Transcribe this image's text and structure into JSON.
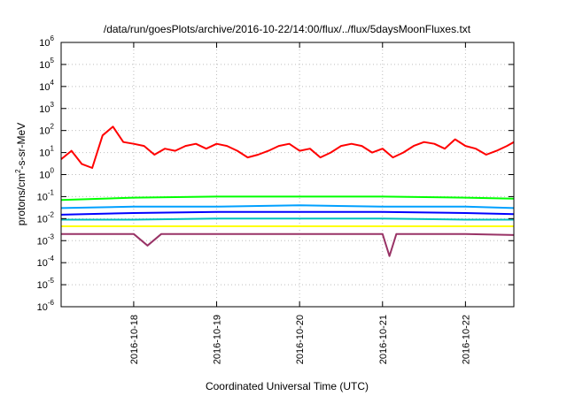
{
  "chart_data": {
    "type": "line",
    "title": "/data/run/goesPlots/archive/2016-10-22/14:00/flux/../flux/5daysMoonFluxes.txt",
    "xlabel": "Coordinated Universal Time (UTC)",
    "ylabel": {
      "prefix": "protons/cm",
      "superscript": "2",
      "suffix": "-s-sr-MeV"
    },
    "yscale": "log",
    "ylim": [
      1e-06,
      1000000.0
    ],
    "y_ticks": [
      {
        "base": "10",
        "exp": "-6",
        "value": 1e-06
      },
      {
        "base": "10",
        "exp": "-5",
        "value": 1e-05
      },
      {
        "base": "10",
        "exp": "-4",
        "value": 0.0001
      },
      {
        "base": "10",
        "exp": "-3",
        "value": 0.001
      },
      {
        "base": "10",
        "exp": "-2",
        "value": 0.01
      },
      {
        "base": "10",
        "exp": "-1",
        "value": 0.1
      },
      {
        "base": "10",
        "exp": "0",
        "value": 1
      },
      {
        "base": "10",
        "exp": "1",
        "value": 10
      },
      {
        "base": "10",
        "exp": "2",
        "value": 100
      },
      {
        "base": "10",
        "exp": "3",
        "value": 1000
      },
      {
        "base": "10",
        "exp": "4",
        "value": 10000
      },
      {
        "base": "10",
        "exp": "5",
        "value": 100000
      },
      {
        "base": "10",
        "exp": "6",
        "value": 1000000
      }
    ],
    "xlim": [
      "2016-10-17T03:00",
      "2016-10-22T14:00"
    ],
    "x_ticks": [
      "2016-10-18",
      "2016-10-19",
      "2016-10-20",
      "2016-10-21",
      "2016-10-22"
    ],
    "grid": true,
    "series": [
      {
        "color": "#ff0000",
        "x": [
          "2016-10-17T03:00",
          "2016-10-17T06:00",
          "2016-10-17T09:00",
          "2016-10-17T12:00",
          "2016-10-17T15:00",
          "2016-10-17T18:00",
          "2016-10-17T21:00",
          "2016-10-18T00:00",
          "2016-10-18T03:00",
          "2016-10-18T06:00",
          "2016-10-18T09:00",
          "2016-10-18T12:00",
          "2016-10-18T15:00",
          "2016-10-18T18:00",
          "2016-10-18T21:00",
          "2016-10-19T00:00",
          "2016-10-19T03:00",
          "2016-10-19T06:00",
          "2016-10-19T09:00",
          "2016-10-19T12:00",
          "2016-10-19T15:00",
          "2016-10-19T18:00",
          "2016-10-19T21:00",
          "2016-10-20T00:00",
          "2016-10-20T03:00",
          "2016-10-20T06:00",
          "2016-10-20T09:00",
          "2016-10-20T12:00",
          "2016-10-20T15:00",
          "2016-10-20T18:00",
          "2016-10-20T21:00",
          "2016-10-21T00:00",
          "2016-10-21T03:00",
          "2016-10-21T06:00",
          "2016-10-21T09:00",
          "2016-10-21T12:00",
          "2016-10-21T15:00",
          "2016-10-21T18:00",
          "2016-10-21T21:00",
          "2016-10-22T00:00",
          "2016-10-22T03:00",
          "2016-10-22T06:00",
          "2016-10-22T09:00",
          "2016-10-22T12:00",
          "2016-10-22T14:00"
        ],
        "values": [
          5,
          12,
          3,
          2,
          60,
          150,
          30,
          25,
          20,
          8,
          15,
          12,
          20,
          25,
          15,
          25,
          20,
          12,
          6,
          8,
          12,
          20,
          25,
          12,
          15,
          6,
          10,
          20,
          25,
          20,
          10,
          15,
          6,
          10,
          20,
          30,
          25,
          15,
          40,
          20,
          15,
          8,
          12,
          20,
          30
        ]
      },
      {
        "color": "#00ff00",
        "x": [
          "2016-10-17T03:00",
          "2016-10-18T00:00",
          "2016-10-19T00:00",
          "2016-10-20T00:00",
          "2016-10-21T00:00",
          "2016-10-22T00:00",
          "2016-10-22T14:00"
        ],
        "values": [
          0.07,
          0.09,
          0.1,
          0.1,
          0.1,
          0.09,
          0.08
        ]
      },
      {
        "color": "#00a0ff",
        "x": [
          "2016-10-17T03:00",
          "2016-10-18T00:00",
          "2016-10-19T00:00",
          "2016-10-20T00:00",
          "2016-10-21T00:00",
          "2016-10-22T00:00",
          "2016-10-22T14:00"
        ],
        "values": [
          0.03,
          0.035,
          0.035,
          0.04,
          0.035,
          0.035,
          0.03
        ]
      },
      {
        "color": "#0000ff",
        "x": [
          "2016-10-17T03:00",
          "2016-10-18T00:00",
          "2016-10-19T00:00",
          "2016-10-20T00:00",
          "2016-10-21T00:00",
          "2016-10-22T00:00",
          "2016-10-22T14:00"
        ],
        "values": [
          0.015,
          0.018,
          0.02,
          0.02,
          0.02,
          0.018,
          0.016
        ]
      },
      {
        "color": "#00c0c0",
        "x": [
          "2016-10-17T03:00",
          "2016-10-18T00:00",
          "2016-10-19T00:00",
          "2016-10-20T00:00",
          "2016-10-21T00:00",
          "2016-10-22T00:00",
          "2016-10-22T14:00"
        ],
        "values": [
          0.009,
          0.009,
          0.01,
          0.01,
          0.01,
          0.009,
          0.009
        ]
      },
      {
        "color": "#ffff00",
        "x": [
          "2016-10-17T03:00",
          "2016-10-18T00:00",
          "2016-10-19T00:00",
          "2016-10-20T00:00",
          "2016-10-21T00:00",
          "2016-10-22T00:00",
          "2016-10-22T14:00"
        ],
        "values": [
          0.0045,
          0.0045,
          0.0045,
          0.0045,
          0.0045,
          0.0045,
          0.0045
        ]
      },
      {
        "color": "#993366",
        "x": [
          "2016-10-17T03:00",
          "2016-10-18T00:00",
          "2016-10-18T04:00",
          "2016-10-18T08:00",
          "2016-10-19T00:00",
          "2016-10-20T00:00",
          "2016-10-21T00:00",
          "2016-10-21T02:00",
          "2016-10-21T04:00",
          "2016-10-22T00:00",
          "2016-10-22T14:00"
        ],
        "values": [
          0.002,
          0.002,
          0.0006,
          0.002,
          0.002,
          0.002,
          0.002,
          0.0002,
          0.002,
          0.002,
          0.0018
        ]
      }
    ]
  }
}
